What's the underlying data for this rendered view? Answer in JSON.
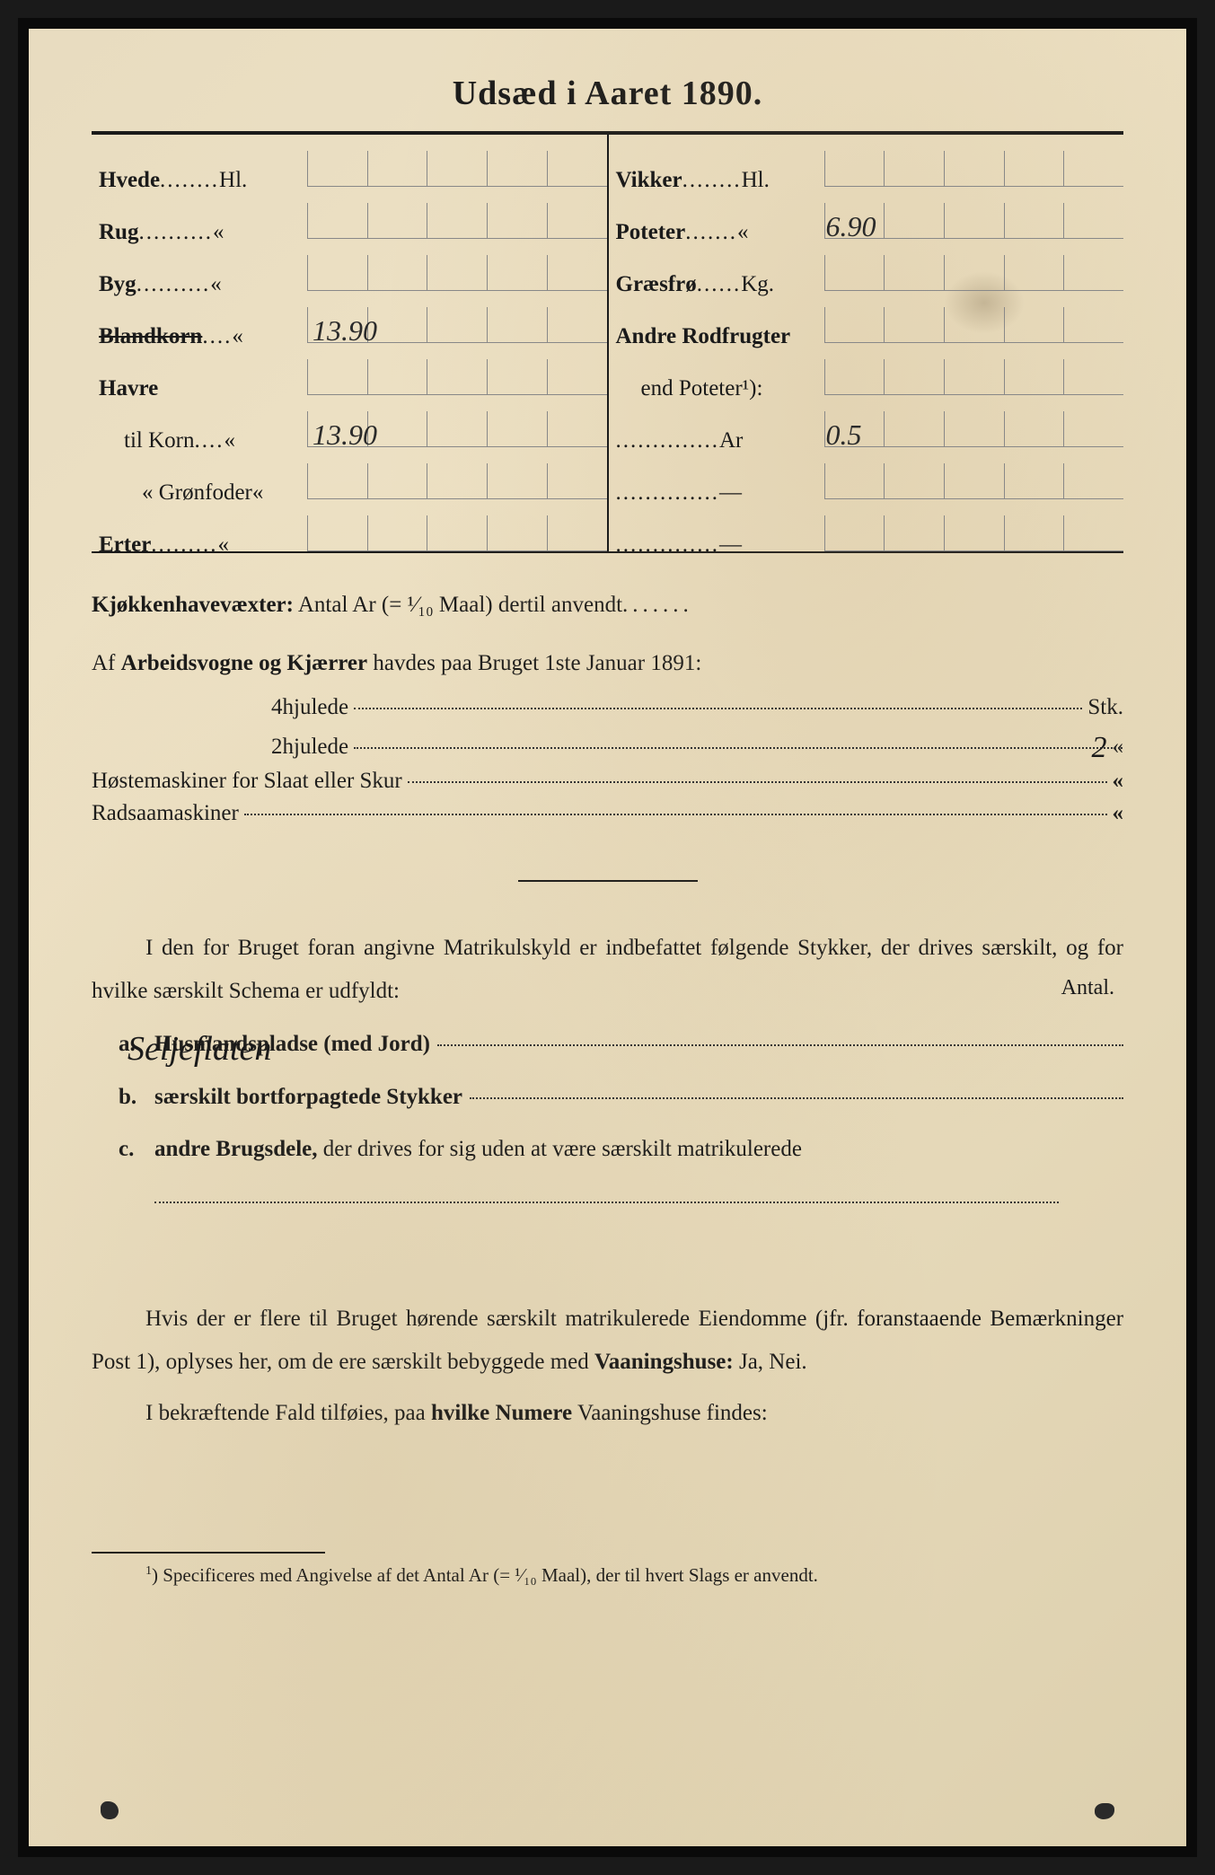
{
  "title": "Udsæd i Aaret 1890.",
  "seed_table": {
    "left": [
      {
        "label": "Hvede",
        "dots": "........",
        "unit": "Hl.",
        "value": ""
      },
      {
        "label": "Rug",
        "dots": "..........",
        "unit": "«",
        "value": ""
      },
      {
        "label": "Byg",
        "dots": "..........",
        "unit": "«",
        "value": ""
      },
      {
        "label": "Blandkorn",
        "dots": "....",
        "unit": "«",
        "value": "13.90",
        "strike": true
      },
      {
        "label": "Havre",
        "dots": "",
        "unit": "",
        "value": ""
      },
      {
        "label": "til Korn",
        "dots": "....",
        "unit": "«",
        "value": "13.90",
        "indent": 1
      },
      {
        "label": "«  Grønfoder",
        "dots": "",
        "unit": "«",
        "value": "",
        "indent": 2
      },
      {
        "label": "Erter",
        "dots": ".........",
        "unit": "«",
        "value": ""
      }
    ],
    "right": [
      {
        "label": "Vikker",
        "dots": "........",
        "unit": "Hl.",
        "value": ""
      },
      {
        "label": "Poteter",
        "dots": ".......",
        "unit": "«",
        "value": "6.90"
      },
      {
        "label": "Græsfrø",
        "dots": "......",
        "unit": "Kg.",
        "value": ""
      },
      {
        "label": "Andre Rodfrugter",
        "dots": "",
        "unit": "",
        "value": ""
      },
      {
        "label": "end Poteter¹):",
        "dots": "",
        "unit": "",
        "value": "",
        "indent": 1
      },
      {
        "label": "",
        "dots": "..............",
        "unit": "Ar",
        "value": "0.5"
      },
      {
        "label": "",
        "dots": "..............",
        "unit": "—",
        "value": ""
      },
      {
        "label": "",
        "dots": "..............",
        "unit": "—",
        "value": ""
      }
    ]
  },
  "kitchen_line": {
    "bold": "Kjøkkenhavevæxter:",
    "rest": " Antal Ar (= ¹⁄₁₀ Maal) dertil anvendt",
    "dots": "......."
  },
  "wagon_line": {
    "prefix": "Af ",
    "bold": "Arbeidsvogne og Kjærrer",
    "rest": " havdes paa Bruget 1ste Januar 1891:"
  },
  "wagon_items": [
    {
      "label": "4hjulede",
      "value": "",
      "tail": "Stk."
    },
    {
      "label": "2hjulede",
      "value": "2",
      "tail": "«"
    }
  ],
  "hostemaskiner": {
    "bold": "Høstemaskiner",
    "rest": " for Slaat eller Skur",
    "tail": "«"
  },
  "radsaa": {
    "bold": "Radsaamaskiner",
    "tail": "«"
  },
  "main_para": {
    "text1": "I den for Bruget foran angivne Matrikulskyld er indbefattet følgende Stykker, der drives særskilt, og for hvilke særskilt Schema er udfyldt:",
    "antal": "Antal."
  },
  "list_items": [
    {
      "letter": "a.",
      "label": "Husmandspladse (med Jord)",
      "hand": "Seljeflaten"
    },
    {
      "letter": "b.",
      "label": "særskilt bortforpagtede Stykker",
      "hand": ""
    },
    {
      "letter": "c.",
      "label_part1": "andre Brugsdele,",
      "label_part2": " der drives for sig uden at være særskilt matrikulerede",
      "hand": "",
      "multiline": true
    }
  ],
  "para2_line1": "Hvis der er flere til Bruget hørende særskilt matrikulerede",
  "para2_line2_a": "Eiendomme (jfr. foranstaaende Bemærkninger Post 1), oplyses her,",
  "para2_line3": "om de ere særskilt bebyggede med ",
  "para2_bold": "Vaaningshuse:",
  "para2_tail": " Ja, Nei.",
  "para3_a": "I bekræftende Fald tilføies, paa ",
  "para3_bold": "hvilke Numere",
  "para3_b": " Vaaningshuse findes:",
  "footnote": {
    "sup": "1",
    "text": ") Specificeres med Angivelse af det Antal Ar (= ¹⁄₁₀ Maal), der til hvert Slags er anvendt."
  },
  "colors": {
    "paper": "#e8dcc0",
    "ink": "#1a1a1a",
    "border": "#0a0a0a",
    "grid": "#888888"
  }
}
